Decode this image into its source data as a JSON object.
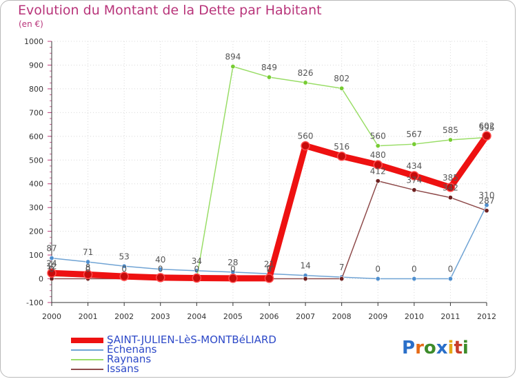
{
  "title": "Evolution du Montant de la Dette par Habitant",
  "subtitle": "(en €)",
  "logo": [
    "P",
    "r",
    "o",
    "x",
    "i",
    "t",
    "i"
  ],
  "logo_colors": [
    "#2a6fc9",
    "#e56a16",
    "#3d8b2a",
    "#2a6fc9",
    "#e5a716",
    "#c83d2a",
    "#3d8b2a"
  ],
  "chart_data": {
    "type": "line",
    "title": "Evolution du Montant de la Dette par Habitant",
    "ylabel": "(en €)",
    "xlabel": "",
    "categories": [
      "2000",
      "2001",
      "2002",
      "2003",
      "2004",
      "2005",
      "2006",
      "2007",
      "2008",
      "2009",
      "2010",
      "2011",
      "2012"
    ],
    "ylim": [
      -100,
      1000
    ],
    "yticks": [
      -100,
      0,
      100,
      200,
      300,
      400,
      500,
      600,
      700,
      800,
      900,
      1000
    ],
    "series": [
      {
        "name": "SAINT-JULIEN-LèS-MONTBéLIARD",
        "color": "#ee1111",
        "point_color": "#c70b0b",
        "values": [
          24,
          18,
          10,
          5,
          3,
          2,
          2,
          560,
          516,
          480,
          434,
          385,
          602
        ],
        "labels": [
          "24",
          "",
          "",
          "",
          "",
          "",
          "2",
          "560",
          "516",
          "480",
          "434",
          "385",
          "602"
        ]
      },
      {
        "name": "Échenans",
        "color": "#6fa3d4",
        "point_color": "#4f8fcf",
        "values": [
          87,
          71,
          53,
          40,
          34,
          28,
          21,
          14,
          7,
          0,
          0,
          0,
          310
        ],
        "labels": [
          "87",
          "71",
          "53",
          "40",
          "34",
          "28",
          "21",
          "14",
          "7",
          "0",
          "0",
          "0",
          "310"
        ]
      },
      {
        "name": "Raynans",
        "color": "#99dd66",
        "point_color": "#77cc33",
        "values": [
          12,
          8,
          5,
          2,
          1,
          894,
          849,
          826,
          802,
          560,
          567,
          585,
          595
        ],
        "labels": [
          "12",
          "8",
          "",
          "",
          "",
          "894",
          "849",
          "826",
          "802",
          "560",
          "567",
          "585",
          "595"
        ]
      },
      {
        "name": "Issans",
        "color": "#8e4a4a",
        "point_color": "#6e1f1f",
        "values": [
          0,
          0,
          0,
          0,
          0,
          0,
          0,
          0,
          0,
          412,
          374,
          342,
          287
        ],
        "labels": [
          "0",
          "0",
          "0",
          "0",
          "0",
          "0",
          "0",
          "",
          "",
          "412",
          "374",
          "342",
          "287"
        ]
      }
    ],
    "legend_position": "bottom-left"
  }
}
